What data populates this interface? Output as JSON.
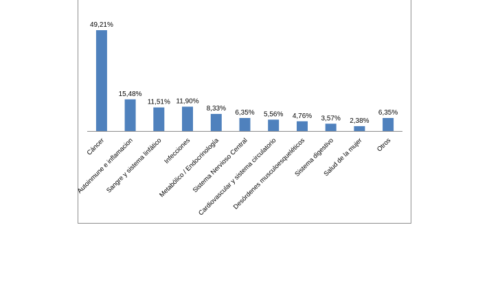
{
  "chart_data": {
    "type": "bar",
    "categories": [
      "Cáncer",
      "Autoinmune e inflamacion",
      "Sangre y sistema linfático",
      "Infecciones",
      "Metabólico / Endocrinología",
      "Sistema Nervioso Central",
      "Cardiovascular y sistema circulatorio",
      "Desórdenes musculoesqueléticos",
      "Sistema digestivo",
      "Salud de la mujer",
      "Otros"
    ],
    "values": [
      49.21,
      15.48,
      11.51,
      11.9,
      8.33,
      6.35,
      5.56,
      4.76,
      3.57,
      2.38,
      6.35
    ],
    "data_labels": [
      "49,21%",
      "15,48%",
      "11,51%",
      "11,90%",
      "8,33%",
      "6,35%",
      "5,56%",
      "4,76%",
      "3,57%",
      "2,38%",
      "6,35%"
    ],
    "ylim": [
      0,
      50
    ],
    "grid": false,
    "legend": "none",
    "bar_color": "#4f81bd",
    "axis_color": "#8c8c8c"
  }
}
